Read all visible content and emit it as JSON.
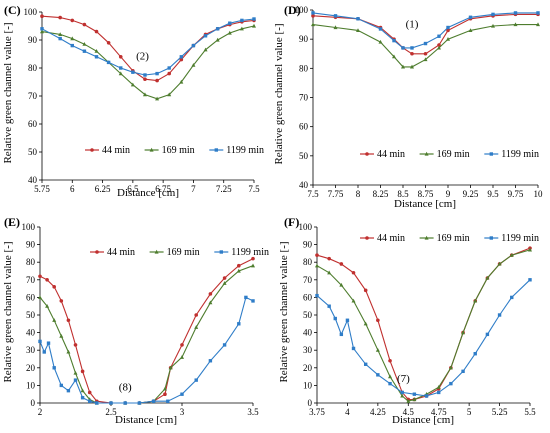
{
  "chart_data": [
    {
      "panel": "(C)",
      "type": "line",
      "xlabel": "Distance [cm]",
      "ylabel": "Relative green channel value [-]",
      "xlim": [
        5.75,
        7.5
      ],
      "ylim": [
        40,
        100
      ],
      "xticks": [
        5.75,
        6,
        6.25,
        6.5,
        6.75,
        7,
        7.25,
        7.5
      ],
      "xtick_labels": [
        "5.75",
        "6",
        "6.25",
        "6.5",
        "6.75",
        "7",
        "7.25",
        "7.5"
      ],
      "yticks": [
        40,
        50,
        60,
        70,
        80,
        90,
        100
      ],
      "ytick_labels": [
        "40",
        "50",
        "60",
        "70",
        "80",
        "90",
        "100"
      ],
      "annotation": {
        "text": "(2)",
        "x": 6.58,
        "y": 83
      },
      "legend": "inside-bottom-left",
      "series": [
        {
          "name": "44 min",
          "color": "#c0302f",
          "marker": "circle",
          "x": [
            5.75,
            5.9,
            6.0,
            6.1,
            6.2,
            6.3,
            6.4,
            6.5,
            6.6,
            6.7,
            6.8,
            6.9,
            7.0,
            7.1,
            7.2,
            7.3,
            7.4,
            7.5
          ],
          "y": [
            98.5,
            98,
            97,
            95.5,
            93,
            89,
            84,
            79,
            76,
            75.5,
            78,
            83,
            88,
            92,
            94,
            95.5,
            96.5,
            97
          ]
        },
        {
          "name": "169 min",
          "color": "#4e7d2e",
          "marker": "triangle",
          "x": [
            5.75,
            5.9,
            6.0,
            6.1,
            6.2,
            6.3,
            6.4,
            6.5,
            6.6,
            6.7,
            6.8,
            6.9,
            7.0,
            7.1,
            7.2,
            7.3,
            7.4,
            7.5
          ],
          "y": [
            93,
            92,
            90.5,
            88.5,
            86,
            82,
            78,
            74,
            70.5,
            69,
            70.5,
            75,
            81,
            86.5,
            90,
            92.5,
            94,
            95
          ]
        },
        {
          "name": "1199 min",
          "color": "#2f7dc8",
          "marker": "square",
          "x": [
            5.75,
            5.9,
            6.0,
            6.1,
            6.2,
            6.3,
            6.4,
            6.5,
            6.6,
            6.7,
            6.8,
            6.9,
            7.0,
            7.1,
            7.2,
            7.3,
            7.4,
            7.5
          ],
          "y": [
            94,
            90.5,
            88,
            86,
            84,
            82,
            80,
            78.5,
            77.5,
            78,
            80,
            84,
            88,
            91.5,
            94,
            96,
            97,
            97.5
          ]
        }
      ]
    },
    {
      "panel": "(D)",
      "type": "line",
      "xlabel": "Distance [cm]",
      "ylabel": "Relative green channel value [-]",
      "xlim": [
        7.5,
        10
      ],
      "ylim": [
        40,
        100
      ],
      "xticks": [
        7.5,
        7.75,
        8,
        8.25,
        8.5,
        8.75,
        9,
        9.25,
        9.5,
        9.75,
        10
      ],
      "xtick_labels": [
        "7.5",
        "7.75",
        "8",
        "8.25",
        "8.5",
        "8.75",
        "9",
        "9.25",
        "9.5",
        "9.75",
        "10"
      ],
      "yticks": [
        40,
        50,
        60,
        70,
        80,
        90,
        100
      ],
      "ytick_labels": [
        "40",
        "50",
        "60",
        "70",
        "80",
        "90",
        "100"
      ],
      "annotation": {
        "text": "(1)",
        "x": 8.6,
        "y": 94
      },
      "legend": "inside-bottom-center",
      "series": [
        {
          "name": "44 min",
          "color": "#c0302f",
          "marker": "circle",
          "x": [
            7.5,
            7.75,
            8.0,
            8.25,
            8.4,
            8.5,
            8.6,
            8.75,
            8.9,
            9.0,
            9.25,
            9.5,
            9.75,
            10.0
          ],
          "y": [
            98,
            97.5,
            97,
            94,
            90,
            87,
            85,
            85,
            88,
            93,
            97,
            98,
            98.5,
            98.5
          ]
        },
        {
          "name": "169 min",
          "color": "#4e7d2e",
          "marker": "triangle",
          "x": [
            7.5,
            7.75,
            8.0,
            8.25,
            8.4,
            8.5,
            8.6,
            8.75,
            8.9,
            9.0,
            9.25,
            9.5,
            9.75,
            10.0
          ],
          "y": [
            95,
            94,
            93,
            89,
            84,
            80.5,
            80.5,
            83,
            87,
            90,
            93,
            94.5,
            95,
            95
          ]
        },
        {
          "name": "1199 min",
          "color": "#2f7dc8",
          "marker": "square",
          "x": [
            7.5,
            7.75,
            8.0,
            8.25,
            8.4,
            8.5,
            8.6,
            8.75,
            8.9,
            9.0,
            9.25,
            9.5,
            9.75,
            10.0
          ],
          "y": [
            99,
            98,
            97,
            93.5,
            89.5,
            87,
            87,
            88.5,
            91,
            94,
            97.5,
            98.5,
            99,
            99
          ]
        }
      ]
    },
    {
      "panel": "(E)",
      "type": "line",
      "xlabel": "Distance [cm]",
      "ylabel": "Relative green channel value [-]",
      "xlim": [
        2,
        3.5
      ],
      "ylim": [
        0,
        100
      ],
      "xticks": [
        2,
        2.5,
        3,
        3.5
      ],
      "xtick_labels": [
        "2",
        "2.5",
        "3",
        "3.5"
      ],
      "yticks": [
        0,
        10,
        20,
        30,
        40,
        50,
        60,
        70,
        80,
        90,
        100
      ],
      "ytick_labels": [
        "0",
        "10",
        "20",
        "30",
        "40",
        "50",
        "60",
        "70",
        "80",
        "90",
        "100"
      ],
      "annotation": {
        "text": "(8)",
        "x": 2.6,
        "y": 7
      },
      "legend": "top-center",
      "series": [
        {
          "name": "44 min",
          "color": "#c0302f",
          "marker": "circle",
          "x": [
            2.0,
            2.05,
            2.1,
            2.15,
            2.2,
            2.25,
            2.3,
            2.35,
            2.4,
            2.5,
            2.6,
            2.7,
            2.8,
            2.88,
            2.92,
            3.0,
            3.1,
            3.2,
            3.3,
            3.4,
            3.5
          ],
          "y": [
            72,
            70,
            66,
            58,
            47,
            33,
            18,
            6,
            1,
            0,
            0,
            0,
            1,
            5,
            20,
            33,
            50,
            62,
            71,
            78,
            82
          ]
        },
        {
          "name": "169 min",
          "color": "#4e7d2e",
          "marker": "triangle",
          "x": [
            2.0,
            2.05,
            2.1,
            2.15,
            2.2,
            2.25,
            2.3,
            2.35,
            2.4,
            2.5,
            2.6,
            2.7,
            2.8,
            2.88,
            2.92,
            3.0,
            3.1,
            3.2,
            3.3,
            3.4,
            3.5
          ],
          "y": [
            60,
            55,
            47,
            38,
            29,
            17,
            7,
            2,
            0,
            0,
            0,
            0,
            1,
            8,
            20,
            26,
            43,
            57,
            68,
            75,
            78
          ]
        },
        {
          "name": "1199 min",
          "color": "#2f7dc8",
          "marker": "square",
          "x": [
            2.0,
            2.03,
            2.06,
            2.1,
            2.15,
            2.2,
            2.25,
            2.3,
            2.35,
            2.4,
            2.5,
            2.6,
            2.7,
            2.8,
            2.9,
            3.0,
            3.1,
            3.2,
            3.3,
            3.4,
            3.45,
            3.5
          ],
          "y": [
            35,
            29,
            34,
            20,
            10,
            7,
            13,
            3,
            1,
            0,
            0,
            0,
            0,
            1,
            1,
            5,
            13,
            24,
            33,
            45,
            60,
            58
          ]
        }
      ]
    },
    {
      "panel": "(F)",
      "type": "line",
      "xlabel": "Distance [cm]",
      "ylabel": "Relative green channel value [-]",
      "xlim": [
        3.75,
        5.5
      ],
      "ylim": [
        0,
        100
      ],
      "xticks": [
        3.75,
        4,
        4.25,
        4.5,
        4.75,
        5,
        5.25,
        5.5
      ],
      "xtick_labels": [
        "3.75",
        "4",
        "4.25",
        "4.5",
        "4.75",
        "5",
        "5.25",
        "5.5"
      ],
      "yticks": [
        0,
        10,
        20,
        30,
        40,
        50,
        60,
        70,
        80,
        90,
        100
      ],
      "ytick_labels": [
        "0",
        "10",
        "20",
        "30",
        "40",
        "50",
        "60",
        "70",
        "80",
        "90",
        "100"
      ],
      "annotation": {
        "text": "(7)",
        "x": 4.46,
        "y": 12
      },
      "legend": "top-center",
      "series": [
        {
          "name": "44 min",
          "color": "#c0302f",
          "marker": "circle",
          "x": [
            3.75,
            3.85,
            3.95,
            4.05,
            4.15,
            4.25,
            4.35,
            4.45,
            4.5,
            4.55,
            4.65,
            4.75,
            4.85,
            4.95,
            5.05,
            5.15,
            5.25,
            5.35,
            5.5
          ],
          "y": [
            84,
            82,
            79,
            74,
            64,
            47,
            24,
            6,
            2,
            2,
            4,
            8,
            20,
            40,
            58,
            71,
            79,
            84,
            88
          ]
        },
        {
          "name": "169 min",
          "color": "#4e7d2e",
          "marker": "triangle",
          "x": [
            3.75,
            3.85,
            3.95,
            4.05,
            4.15,
            4.25,
            4.35,
            4.45,
            4.5,
            4.55,
            4.65,
            4.75,
            4.85,
            4.95,
            5.05,
            5.15,
            5.25,
            5.35,
            5.5
          ],
          "y": [
            78,
            74,
            67,
            58,
            45,
            30,
            15,
            4,
            1,
            2,
            5,
            9,
            20,
            40,
            58,
            71,
            79,
            84,
            87
          ]
        },
        {
          "name": "1199 min",
          "color": "#2f7dc8",
          "marker": "square",
          "x": [
            3.75,
            3.85,
            3.9,
            3.95,
            4.0,
            4.05,
            4.15,
            4.25,
            4.35,
            4.45,
            4.55,
            4.65,
            4.75,
            4.85,
            4.95,
            5.05,
            5.15,
            5.25,
            5.35,
            5.5
          ],
          "y": [
            61,
            55,
            48,
            39,
            47,
            31,
            22,
            16,
            11,
            6,
            5,
            4,
            6,
            11,
            18,
            28,
            39,
            50,
            60,
            70
          ]
        }
      ]
    }
  ]
}
